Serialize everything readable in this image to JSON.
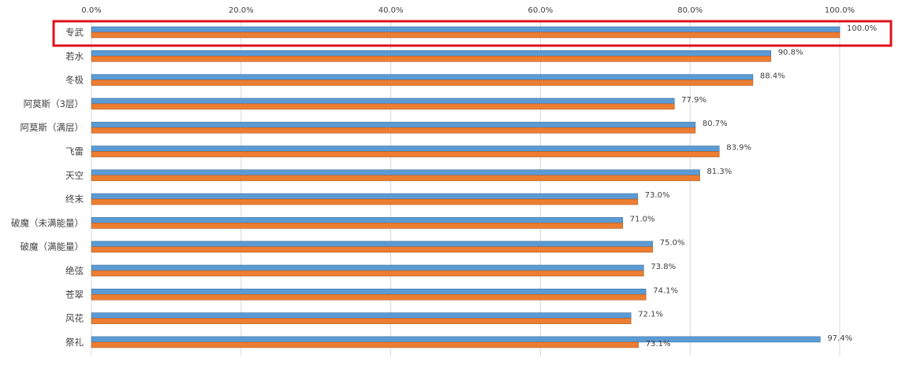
{
  "chart_data": {
    "type": "bar",
    "orientation": "horizontal",
    "title": "",
    "xlabel": "",
    "ylabel": "",
    "xlim": [
      0,
      100
    ],
    "x_ticks": [
      "0.0%",
      "20.0%",
      "40.0%",
      "60.0%",
      "80.0%",
      "100.0%"
    ],
    "x_tick_values": [
      0,
      20,
      40,
      60,
      80,
      100
    ],
    "grid": true,
    "legend": "none",
    "highlighted_category": "专武",
    "highlight_color": "#e0101a",
    "categories": [
      "专武",
      "若水",
      "冬极",
      "阿莫斯（3层）",
      "阿莫斯（满层）",
      "飞雷",
      "天空",
      "终末",
      "破魔（未满能量）",
      "破魔（满能量）",
      "绝弦",
      "苍翠",
      "风花",
      "祭礼"
    ],
    "series": [
      {
        "name": "series-1",
        "color": "#5b9bd5",
        "values": [
          100.0,
          90.8,
          88.4,
          77.9,
          80.7,
          83.9,
          81.3,
          73.0,
          71.0,
          75.0,
          73.8,
          74.1,
          72.1,
          97.4
        ],
        "labels": [
          "100.0%",
          "90.8%",
          "88.4%",
          "77.9%",
          "80.7%",
          "83.9%",
          "81.3%",
          "73.0%",
          "71.0%",
          "75.0%",
          "73.8%",
          "74.1%",
          "72.1%",
          "97.4%"
        ]
      },
      {
        "name": "series-2",
        "color": "#ed7d31",
        "values": [
          100.0,
          90.8,
          88.4,
          77.9,
          80.7,
          83.9,
          81.3,
          73.0,
          71.0,
          75.0,
          73.8,
          74.1,
          72.1,
          73.1
        ],
        "labels": [
          null,
          null,
          null,
          null,
          null,
          null,
          null,
          null,
          null,
          null,
          null,
          null,
          null,
          "73.1%"
        ]
      }
    ]
  }
}
